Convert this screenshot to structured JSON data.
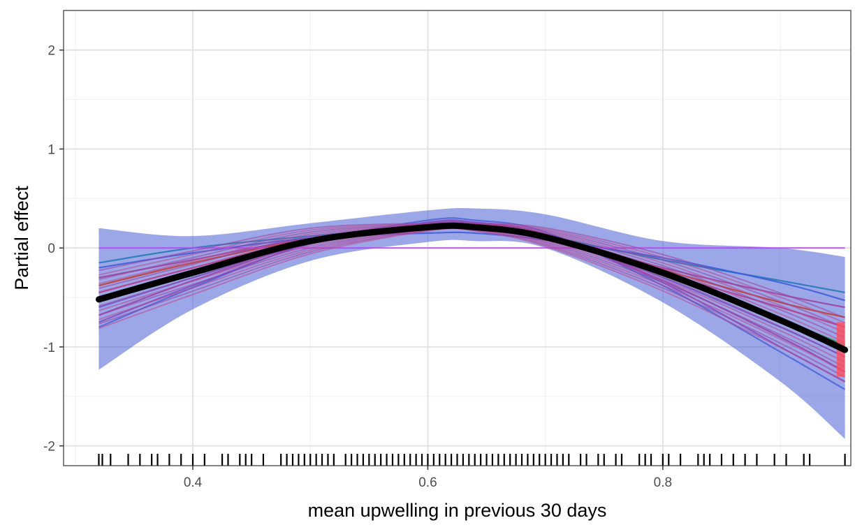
{
  "chart_data": {
    "type": "line",
    "title": "",
    "xlabel": "mean upwelling in previous 30 days",
    "ylabel": "Partial effect",
    "xlim": [
      0.29,
      0.96
    ],
    "ylim": [
      -2.2,
      2.4
    ],
    "x_ticks": [
      0.4,
      0.6,
      0.8
    ],
    "x_tick_labels": [
      "0.4",
      "0.6",
      "0.8"
    ],
    "y_ticks": [
      -2,
      -1,
      0,
      1,
      2
    ],
    "y_tick_labels": [
      "-2",
      "-1",
      "0",
      "1",
      "2"
    ],
    "grid": true,
    "legend": "none",
    "confidence_band": {
      "color": "#4a5fd6",
      "x": [
        0.32,
        0.4,
        0.5,
        0.6,
        0.64,
        0.7,
        0.8,
        0.9,
        0.955
      ],
      "upper": [
        0.2,
        0.12,
        0.25,
        0.38,
        0.4,
        0.34,
        0.07,
        0.0,
        -0.09
      ],
      "lower": [
        -1.23,
        -0.62,
        -0.13,
        0.06,
        0.07,
        0.0,
        -0.55,
        -1.35,
        -1.93
      ]
    },
    "fitted_line": {
      "color": "#000000",
      "x": [
        0.32,
        0.4,
        0.5,
        0.6,
        0.64,
        0.7,
        0.8,
        0.9,
        0.955
      ],
      "y": [
        -0.52,
        -0.25,
        0.07,
        0.21,
        0.21,
        0.11,
        -0.25,
        -0.73,
        -1.03
      ]
    },
    "bootstrap_lines": {
      "colors": [
        "#1f77b4",
        "#4a63d8",
        "#7b4fc4",
        "#9c3f9a",
        "#b03a8f",
        "#6a5acd",
        "#3b5bdb",
        "#8e44ad",
        "#c0392b",
        "#2e8b57"
      ],
      "x": [
        0.32,
        0.4,
        0.5,
        0.6,
        0.64,
        0.7,
        0.8,
        0.9,
        0.955
      ],
      "curves": [
        [
          -0.15,
          0.0,
          0.12,
          0.2,
          0.2,
          0.12,
          -0.12,
          -0.33,
          -0.45
        ],
        [
          -0.8,
          -0.4,
          0.05,
          0.28,
          0.28,
          0.16,
          -0.38,
          -1.05,
          -1.43
        ],
        [
          -0.75,
          -0.38,
          0.04,
          0.26,
          0.26,
          0.14,
          -0.35,
          -1.0,
          -1.35
        ],
        [
          -0.3,
          -0.12,
          0.1,
          0.22,
          0.22,
          0.12,
          -0.2,
          -0.47,
          -0.6
        ],
        [
          -0.45,
          -0.2,
          0.08,
          0.22,
          0.22,
          0.12,
          -0.25,
          -0.6,
          -0.8
        ],
        [
          -0.6,
          -0.3,
          0.06,
          0.24,
          0.24,
          0.13,
          -0.3,
          -0.8,
          -1.1
        ],
        [
          -0.2,
          -0.05,
          0.1,
          0.15,
          0.15,
          0.08,
          -0.1,
          -0.35,
          -0.53
        ],
        [
          -0.68,
          -0.33,
          0.05,
          0.25,
          0.25,
          0.14,
          -0.33,
          -0.9,
          -1.25
        ],
        [
          -0.38,
          -0.15,
          0.09,
          0.22,
          0.22,
          0.12,
          -0.22,
          -0.55,
          -0.7
        ],
        [
          -0.52,
          -0.25,
          0.07,
          0.23,
          0.23,
          0.12,
          -0.28,
          -0.72,
          -0.98
        ],
        [
          0.0,
          0.0,
          0.0,
          0.0,
          0.0,
          0.0,
          0.0,
          0.0,
          0.0
        ]
      ]
    },
    "rug_x": [
      0.32,
      0.323,
      0.33,
      0.345,
      0.355,
      0.365,
      0.37,
      0.38,
      0.39,
      0.4,
      0.41,
      0.425,
      0.43,
      0.44,
      0.445,
      0.45,
      0.46,
      0.475,
      0.48,
      0.485,
      0.49,
      0.495,
      0.5,
      0.505,
      0.51,
      0.515,
      0.52,
      0.53,
      0.535,
      0.54,
      0.545,
      0.55,
      0.555,
      0.56,
      0.565,
      0.57,
      0.575,
      0.58,
      0.585,
      0.59,
      0.595,
      0.6,
      0.605,
      0.61,
      0.615,
      0.62,
      0.625,
      0.63,
      0.635,
      0.64,
      0.645,
      0.65,
      0.655,
      0.66,
      0.665,
      0.67,
      0.675,
      0.68,
      0.685,
      0.69,
      0.695,
      0.7,
      0.705,
      0.71,
      0.715,
      0.72,
      0.73,
      0.735,
      0.745,
      0.75,
      0.76,
      0.765,
      0.78,
      0.785,
      0.79,
      0.8,
      0.805,
      0.815,
      0.83,
      0.835,
      0.84,
      0.85,
      0.86,
      0.87,
      0.88,
      0.895,
      0.905,
      0.92,
      0.925,
      0.955
    ]
  }
}
